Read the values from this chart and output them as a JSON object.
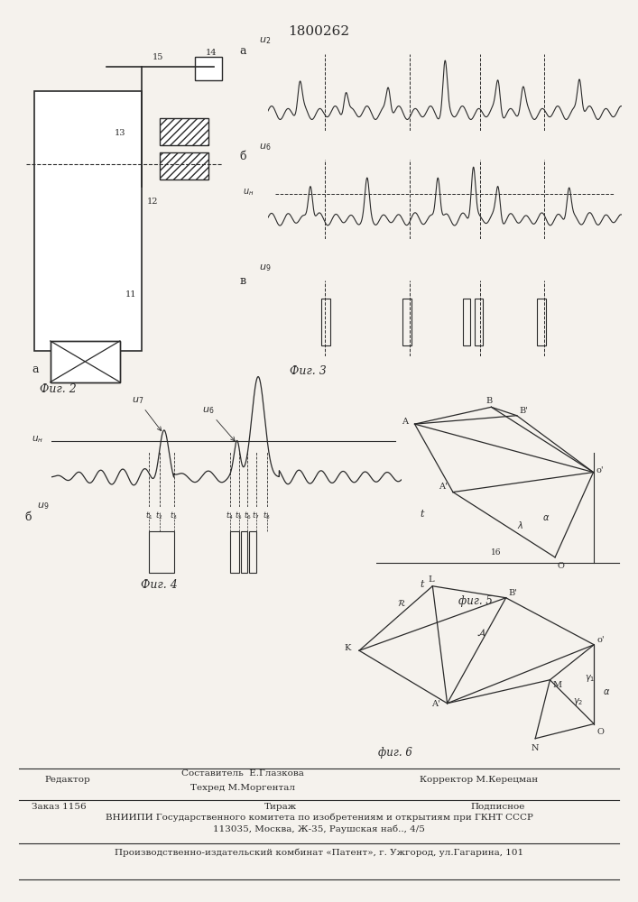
{
  "title": "1800262",
  "fig2_label": "Фиг. 2",
  "fig3_label": "Фиг. 3",
  "fig4_label": "Фиг. 4",
  "fig5_label": "фиг. 5",
  "fig6_label": "фиг. 6",
  "bg_color": "#f5f2ed",
  "line_color": "#2a2a2a",
  "footer_line1": "Составитель  Е.Глазкова",
  "footer_line2": "Техред М.Моргентал",
  "footer_editor": "Редактор",
  "footer_corrector_label": "Корректор М.Керецман",
  "footer_order": "Заказ 1156",
  "footer_tirazh": "Тираж",
  "footer_podpisnoe": "Подписное",
  "footer_vniiipi": "ВНИИПИ Государственного комитета по изобретениям и открытиям при ГКНТ СССР",
  "footer_address": "113035, Москва, Ж-35, Раушская наб.., 4/5",
  "footer_proizv": "Производственно-издательский комбинат «Патент», г. Ужгород, ул.Гагарина, 101"
}
